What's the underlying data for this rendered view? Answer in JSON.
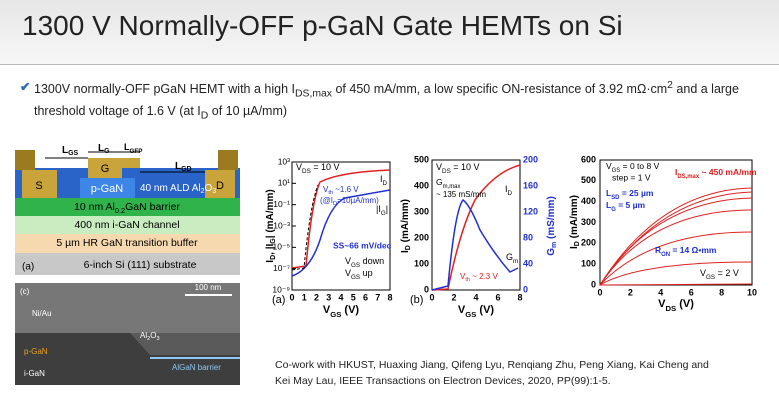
{
  "header": {
    "title": "1300 V Normally-OFF p-GaN Gate HEMTs on Si"
  },
  "bullet": [
    "1300V normally-OFF pGaN HEMT with a high I",
    "DS,max",
    " of 450 mA/mm, a low specific ON-resistance of 3.92 mΩ·cm",
    "2",
    " and a large threshold voltage of 1.6 V (at I",
    "D",
    " of 10 µA/mm)"
  ],
  "device": {
    "lgs": [
      "L",
      "GS"
    ],
    "lg": [
      "L",
      "G"
    ],
    "lgfp": [
      "L",
      "GFP"
    ],
    "lgd": [
      "L",
      "GD"
    ],
    "source": "S",
    "gate": "G",
    "drain": "D",
    "pgan": "p-GaN",
    "oxide": [
      "40 nm ALD Al",
      "2",
      "O",
      "3"
    ],
    "barrier": [
      "10 nm Al",
      "0.2",
      "GaN barrier"
    ],
    "channel": "400 nm i-GaN channel",
    "buffer": "5 µm HR GaN transition buffer",
    "substrate": "6-inch Si (111) substrate",
    "panel": "(a)"
  },
  "tem": {
    "panel": "(c)",
    "scale": "100 nm",
    "metal": "Ni/Au",
    "oxide": [
      "Al",
      "2",
      "O",
      "3"
    ],
    "pgan": "p-GaN",
    "igan": "i-GaN",
    "barrier": "AlGaN barrier"
  },
  "transfer_log": {
    "yticks": [
      "10³",
      "10¹",
      "10⁻¹",
      "10⁻³",
      "10⁻⁵",
      "10⁻⁷",
      "10⁻⁹"
    ],
    "xticks": [
      "0",
      "1",
      "2",
      "3",
      "4",
      "5",
      "6",
      "7",
      "8"
    ],
    "ylabel": [
      "I",
      "D",
      ", |I",
      "G",
      "| (mA/mm)"
    ],
    "xlabel": [
      "V",
      "GS",
      " (V)"
    ],
    "vds": [
      "V",
      "DS",
      " = 10 V"
    ],
    "vth": [
      "V",
      "th",
      " ~1.6 V"
    ],
    "vth_cond": [
      "(@I",
      "D",
      "=10µA/mm)"
    ],
    "ss": "SS~66 mV/dec",
    "down": [
      "V",
      "GS",
      " down"
    ],
    "up": [
      "V",
      "GS",
      " up"
    ],
    "id": [
      "I",
      "D"
    ],
    "ig": [
      "|I",
      "G",
      "|"
    ],
    "panel": "(a)"
  },
  "transfer_lin": {
    "yticks": [
      "0",
      "100",
      "200",
      "300",
      "400",
      "500"
    ],
    "y2ticks": [
      "0",
      "40",
      "80",
      "120",
      "160",
      "200"
    ],
    "xticks": [
      "0",
      "2",
      "4",
      "6",
      "8"
    ],
    "ylabel": [
      "I",
      "D",
      " (mA/mm)"
    ],
    "y2label": [
      "G",
      "m",
      " (mS/mm)"
    ],
    "xlabel": [
      "V",
      "GS",
      " (V)"
    ],
    "vds": [
      "V",
      "DS",
      " = 10 V"
    ],
    "gmmax": [
      "G",
      "m,max"
    ],
    "gmval": "~ 135 mS/mm",
    "id": [
      "I",
      "D"
    ],
    "gm": [
      "G",
      "m"
    ],
    "vth": [
      "V",
      "th",
      " ~ 2.3 V"
    ],
    "panel": "(b)"
  },
  "output": {
    "yticks": [
      "0",
      "100",
      "200",
      "300",
      "400",
      "500",
      "600"
    ],
    "xticks": [
      "0",
      "2",
      "4",
      "6",
      "8",
      "10"
    ],
    "ylabel": [
      "I",
      "D",
      " (mA/mm)"
    ],
    "xlabel": [
      "V",
      "DS",
      " (V)"
    ],
    "vgs": [
      "V",
      "GS",
      " = 0 to 8 V"
    ],
    "step": "step = 1 V",
    "lsd": [
      "L",
      "SD",
      " = 25 µm"
    ],
    "lg": [
      "L",
      "G",
      " = 5 µm"
    ],
    "idsmax": [
      "I",
      "DS,max",
      " ~ 450 mA/mm"
    ],
    "ron": [
      "R",
      "ON",
      " = 14 Ω•mm"
    ],
    "vgs2": [
      "V",
      "GS",
      " = 2 V"
    ]
  },
  "reference": [
    "Co-work with HKUST, Huaxing Jiang, Qifeng Lyu, Renqiang Zhu, Peng Xiang, Kai Cheng and",
    "Kei May Lau, IEEE Transactions on Electron Devices, 2020, PP(99):1-5."
  ]
}
